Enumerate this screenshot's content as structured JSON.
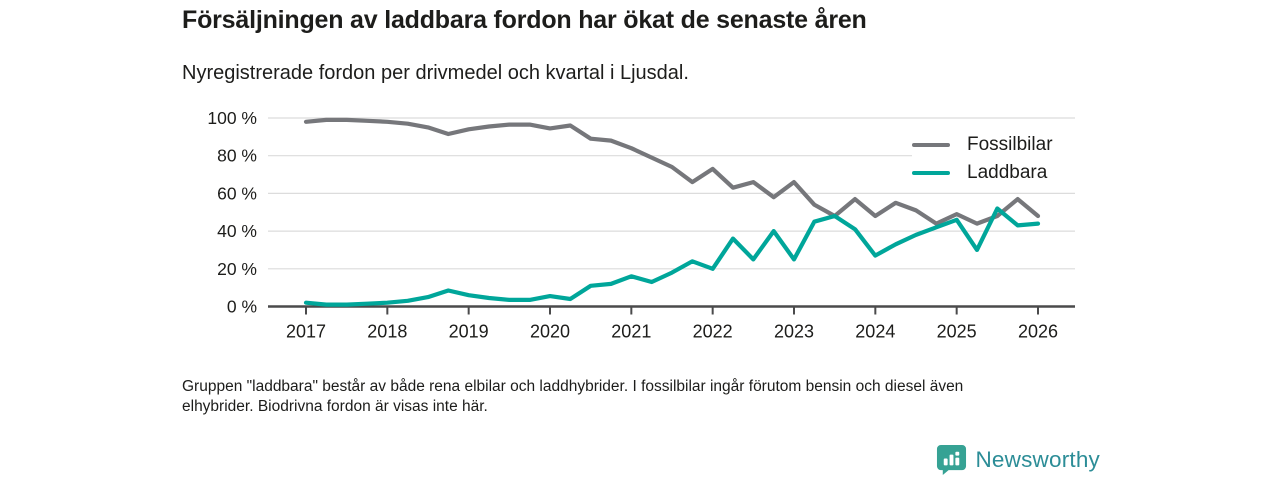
{
  "header": {
    "title": "Försäljningen av laddbara fordon har ökat de senaste åren",
    "subtitle": "Nyregistrerade fordon per drivmedel och kvartal i Ljusdal."
  },
  "chart_data": {
    "type": "line",
    "x_unit": "quarter",
    "x_start": "2017 Q1",
    "x_end": "2026 Q1",
    "points_per_year": 4,
    "x_tick_labels": [
      "2017",
      "2018",
      "2019",
      "2020",
      "2021",
      "2022",
      "2023",
      "2024",
      "2025",
      "2026"
    ],
    "y_tick_labels": [
      "0 %",
      "20 %",
      "40 %",
      "60 %",
      "80 %",
      "100 %"
    ],
    "y_ticks": [
      0,
      20,
      40,
      60,
      80,
      100
    ],
    "ylim": [
      0,
      100
    ],
    "grid": true,
    "legend_position": "top-right",
    "series": [
      {
        "name": "Fossilbilar",
        "color": "#76777b",
        "values": [
          98,
          99,
          99,
          98.5,
          98,
          97,
          95,
          91.5,
          94,
          95.5,
          96.5,
          96.5,
          94.5,
          96,
          89,
          88,
          84,
          79,
          74,
          66,
          73,
          63,
          66,
          58,
          66,
          54,
          48,
          57,
          48,
          55,
          51,
          44,
          49,
          44,
          48,
          57,
          48
        ]
      },
      {
        "name": "Laddbara",
        "color": "#00a69a",
        "values": [
          2,
          1,
          1,
          1.5,
          2,
          3,
          5,
          8.5,
          6,
          4.5,
          3.5,
          3.5,
          5.5,
          4,
          11,
          12,
          16,
          13,
          18,
          24,
          20,
          36,
          25,
          40,
          25,
          45,
          48,
          41,
          27,
          33,
          38,
          42,
          46,
          30,
          52,
          43,
          44
        ]
      }
    ]
  },
  "footnote": {
    "text": "Gruppen \"laddbara\" består av både rena elbilar och laddhybrider. I fossilbilar ingår förutom bensin och diesel även\nelhybrider. Biodrivna fordon är visas inte här."
  },
  "logo": {
    "text": "Newsworthy",
    "badge_color": "#36a294",
    "text_color": "#2c8d97",
    "icon": "bar-chart-pin-icon"
  },
  "colors": {
    "axis": "#4a4a4b",
    "gridline": "#dcdcdc",
    "text": "#1d1d1b"
  }
}
